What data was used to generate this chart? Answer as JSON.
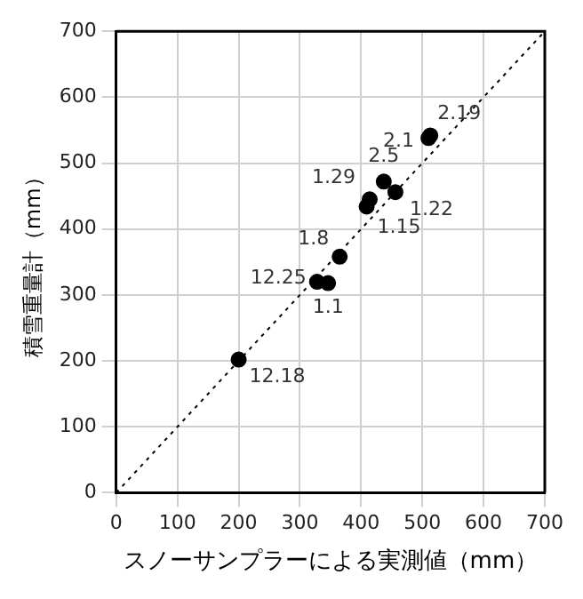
{
  "chart_data": {
    "type": "scatter",
    "xlabel": "スノーサンプラーによる実測値（mm）",
    "ylabel": "積雪重量計（mm）",
    "xlim": [
      0,
      700
    ],
    "ylim": [
      0,
      700
    ],
    "xticks": [
      0,
      100,
      200,
      300,
      400,
      500,
      600,
      700
    ],
    "yticks": [
      0,
      100,
      200,
      300,
      400,
      500,
      600,
      700
    ],
    "grid": true,
    "marker": "circle",
    "series": [
      {
        "color": "#000000",
        "x": [
          200,
          328,
          346,
          365,
          409,
          414,
          437,
          456,
          510,
          513
        ],
        "values": [
          202,
          320,
          318,
          358,
          434,
          445,
          472,
          456,
          538,
          542
        ]
      },
      {
        "type": "line",
        "color": "#000000",
        "line_style": "dotted",
        "marker": "none",
        "x": [
          0,
          700
        ],
        "values": [
          0,
          700
        ]
      }
    ],
    "annotations": [
      {
        "text": "12.18",
        "x": 200,
        "y": 202
      },
      {
        "text": "12.25",
        "x": 328,
        "y": 320
      },
      {
        "text": "1.1",
        "x": 346,
        "y": 318
      },
      {
        "text": "1.8",
        "x": 365,
        "y": 358
      },
      {
        "text": "1.15",
        "x": 409,
        "y": 434
      },
      {
        "text": "1.29",
        "x": 414,
        "y": 445
      },
      {
        "text": "2.5",
        "x": 437,
        "y": 472
      },
      {
        "text": "1.22",
        "x": 456,
        "y": 456
      },
      {
        "text": "2.1",
        "x": 510,
        "y": 538
      },
      {
        "text": "2.19",
        "x": 513,
        "y": 542
      }
    ]
  }
}
